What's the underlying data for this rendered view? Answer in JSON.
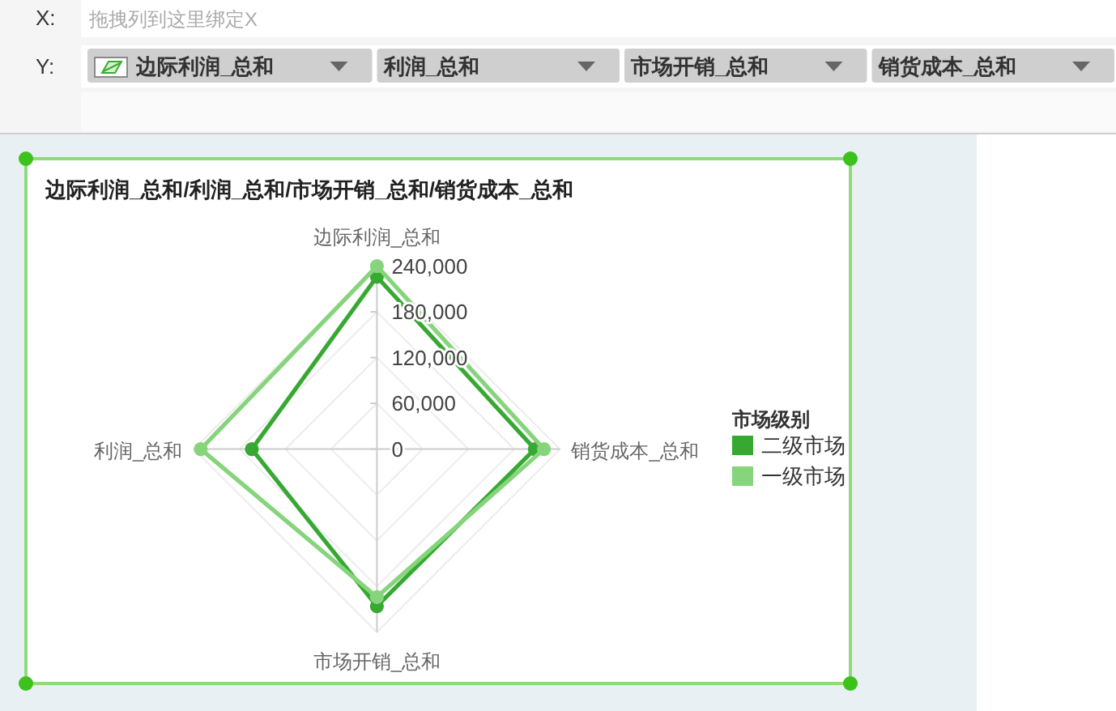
{
  "chart_data": [
    {
      "type": "other",
      "annotations": [
        "X:",
        "拖拽列到这里绑定X",
        "Y:",
        "边际利润_总和",
        "利润_总和",
        "市场开销_总和",
        "销货成本_总和"
      ]
    },
    {
      "type": "radar",
      "title": "边际利润_总和/利润_总和/市场开销_总和/销货成本_总和",
      "categories": [
        "边际利润_总和",
        "销货成本_总和",
        "市场开销_总和",
        "利润_总和"
      ],
      "series": [
        {
          "name": "二级市场",
          "color": "#37a932",
          "values": [
            226000,
            207000,
            206000,
            164000
          ]
        },
        {
          "name": "一级市场",
          "color": "#86d47b",
          "values": [
            240000,
            219000,
            194000,
            231000
          ]
        }
      ],
      "ylim": [
        0,
        240000
      ],
      "yticks": [
        {
          "value": 0,
          "label": "0"
        },
        {
          "value": 60000,
          "label": "60,000"
        },
        {
          "value": 120000,
          "label": "120,000"
        },
        {
          "value": 180000,
          "label": "180,000"
        },
        {
          "value": 240000,
          "label": "240,000"
        }
      ],
      "grid": true,
      "legend": "right",
      "legend_title": "市场级别",
      "marker": "circle"
    }
  ]
}
